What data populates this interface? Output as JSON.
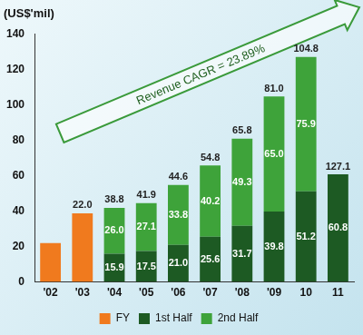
{
  "chart_data": {
    "type": "bar",
    "ylabel": "(US$'mil)",
    "categories": [
      "'02",
      "'03",
      "'04",
      "'05",
      "'06",
      "'07",
      "'08",
      "'09",
      "10",
      "11"
    ],
    "series": [
      {
        "name": "FY",
        "color": "#f07a1e",
        "values": [
          22.0,
          38.8,
          null,
          null,
          null,
          null,
          null,
          null,
          null,
          null
        ]
      },
      {
        "name": "1st Half",
        "color": "#1d5a23",
        "values": [
          null,
          null,
          15.9,
          17.5,
          21.0,
          25.6,
          31.7,
          39.8,
          51.2,
          60.8
        ],
        "value_labels": [
          null,
          null,
          "15.9",
          "17.5",
          "21.0",
          "25.6",
          "31.7",
          "39.8",
          "51.2",
          "60.8"
        ]
      },
      {
        "name": "2nd Half",
        "color": "#3ea33a",
        "values": [
          null,
          null,
          26.0,
          27.1,
          33.8,
          40.2,
          49.3,
          65.0,
          75.9,
          null
        ],
        "value_labels": [
          null,
          null,
          "26.0",
          "27.1",
          "33.8",
          "40.2",
          "49.3",
          "65.0",
          "75.9",
          null
        ]
      }
    ],
    "ylim": [
      0,
      140
    ],
    "yticks": [
      0,
      20,
      40,
      60,
      80,
      100,
      120,
      140
    ],
    "grid": false,
    "stacked": true,
    "data_labels": true,
    "legend": "bottom",
    "annotations": [
      {
        "text": "Revenue CAGR = 23.89%"
      },
      {
        "text": "22.0",
        "x": "'03"
      },
      {
        "text": "38.8",
        "x": "'04"
      },
      {
        "text": "41.9",
        "x": "'05"
      },
      {
        "text": "44.6",
        "x": "'06"
      },
      {
        "text": "54.8",
        "x": "'07"
      },
      {
        "text": "65.8",
        "x": "'08"
      },
      {
        "text": "81.0",
        "x": "'09"
      },
      {
        "text": "104.8",
        "x": "10"
      },
      {
        "text": "127.1",
        "x": "11"
      }
    ]
  }
}
